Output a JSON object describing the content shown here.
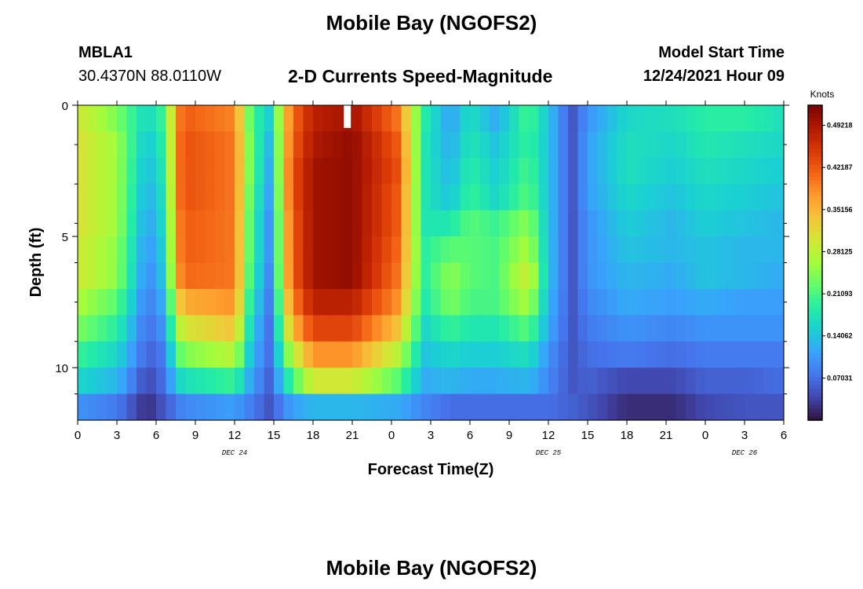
{
  "header": {
    "title": "Mobile Bay (NGOFS2)",
    "station_id": "MBLA1",
    "coordinates": "30.4370N  88.0110W",
    "subtitle": "2-D Currents Speed-Magnitude",
    "model_start_label": "Model Start Time",
    "model_start_value": "12/24/2021 Hour 09"
  },
  "footer": {
    "title": "Mobile Bay (NGOFS2)"
  },
  "colors": {
    "colormap": "turbo",
    "colormap_stops": [
      "#30123b",
      "#4145ab",
      "#4675ed",
      "#39a2fc",
      "#1bcfd4",
      "#24eca6",
      "#61fc6c",
      "#a4fc3b",
      "#d1e834",
      "#f3c63a",
      "#fe9b2d",
      "#f36315",
      "#d93806",
      "#b11901",
      "#7a0402"
    ]
  },
  "chart_data": {
    "type": "heatmap",
    "xlabel": "Forecast Time(Z)",
    "ylabel": "Depth (ft)",
    "x_range_hours_from_dec24_00z": [
      0,
      54
    ],
    "x_tick_labels": [
      "0",
      "3",
      "6",
      "9",
      "12",
      "15",
      "18",
      "21",
      "0",
      "3",
      "6",
      "9",
      "12",
      "15",
      "18",
      "21",
      "0",
      "3",
      "6"
    ],
    "day_labels": [
      {
        "label": "DEC 24",
        "at_hour": 12
      },
      {
        "label": "DEC 25",
        "at_hour": 36
      },
      {
        "label": "DEC 26",
        "at_hour": 51
      }
    ],
    "ylim": [
      0,
      12
    ],
    "y_inverted": true,
    "y_tick_labels": [
      "0",
      "5",
      "10"
    ],
    "y_major_ticks": [
      0,
      5,
      10
    ],
    "y_minor_ticks": [
      1.5,
      3,
      4.5,
      6,
      7.5,
      9,
      11
    ],
    "depth_levels_ft": [
      0.5,
      1.5,
      2.5,
      3.5,
      4.5,
      5.5,
      6.5,
      7.5,
      8.5,
      9.5,
      10.5,
      11.5
    ],
    "time_keyframes_hours": [
      0,
      3,
      5.3,
      6.5,
      8,
      12,
      13.3,
      14.7,
      16.3,
      18,
      21,
      24.5,
      26.5,
      28.5,
      30,
      32,
      34.5,
      36,
      37.8,
      39,
      42,
      45.5,
      48,
      51,
      54
    ],
    "speed_knots_keyframes": [
      [
        0.3,
        0.24,
        0.16,
        0.2,
        0.42,
        0.39,
        0.21,
        0.15,
        0.4,
        0.48,
        0.5,
        0.4,
        0.19,
        0.11,
        0.17,
        0.12,
        0.21,
        0.14,
        0.05,
        0.1,
        0.16,
        0.17,
        0.19,
        0.19,
        0.17
      ],
      [
        0.31,
        0.26,
        0.14,
        0.19,
        0.43,
        0.4,
        0.22,
        0.13,
        0.41,
        0.49,
        0.51,
        0.42,
        0.18,
        0.12,
        0.18,
        0.14,
        0.2,
        0.14,
        0.05,
        0.11,
        0.17,
        0.16,
        0.18,
        0.17,
        0.16
      ],
      [
        0.31,
        0.26,
        0.13,
        0.18,
        0.43,
        0.4,
        0.22,
        0.12,
        0.42,
        0.5,
        0.51,
        0.43,
        0.18,
        0.13,
        0.19,
        0.15,
        0.21,
        0.14,
        0.05,
        0.11,
        0.17,
        0.15,
        0.17,
        0.16,
        0.15
      ],
      [
        0.31,
        0.26,
        0.12,
        0.17,
        0.43,
        0.4,
        0.21,
        0.11,
        0.42,
        0.5,
        0.51,
        0.42,
        0.18,
        0.14,
        0.2,
        0.16,
        0.22,
        0.14,
        0.05,
        0.11,
        0.16,
        0.14,
        0.16,
        0.15,
        0.14
      ],
      [
        0.31,
        0.26,
        0.11,
        0.16,
        0.42,
        0.4,
        0.2,
        0.1,
        0.41,
        0.5,
        0.51,
        0.42,
        0.18,
        0.18,
        0.22,
        0.2,
        0.25,
        0.14,
        0.05,
        0.1,
        0.15,
        0.13,
        0.15,
        0.14,
        0.13
      ],
      [
        0.3,
        0.25,
        0.1,
        0.15,
        0.42,
        0.4,
        0.2,
        0.1,
        0.41,
        0.5,
        0.51,
        0.41,
        0.19,
        0.22,
        0.22,
        0.21,
        0.27,
        0.14,
        0.05,
        0.1,
        0.14,
        0.13,
        0.14,
        0.13,
        0.13
      ],
      [
        0.3,
        0.25,
        0.09,
        0.14,
        0.41,
        0.4,
        0.19,
        0.09,
        0.41,
        0.5,
        0.51,
        0.4,
        0.19,
        0.25,
        0.22,
        0.21,
        0.3,
        0.14,
        0.05,
        0.1,
        0.13,
        0.12,
        0.14,
        0.13,
        0.12
      ],
      [
        0.27,
        0.22,
        0.08,
        0.12,
        0.36,
        0.38,
        0.17,
        0.08,
        0.38,
        0.48,
        0.48,
        0.38,
        0.18,
        0.24,
        0.21,
        0.21,
        0.27,
        0.13,
        0.05,
        0.09,
        0.12,
        0.11,
        0.12,
        0.11,
        0.11
      ],
      [
        0.24,
        0.19,
        0.07,
        0.1,
        0.3,
        0.34,
        0.15,
        0.07,
        0.34,
        0.44,
        0.44,
        0.34,
        0.16,
        0.2,
        0.18,
        0.18,
        0.22,
        0.12,
        0.05,
        0.08,
        0.1,
        0.09,
        0.1,
        0.1,
        0.1
      ],
      [
        0.2,
        0.16,
        0.06,
        0.08,
        0.24,
        0.28,
        0.13,
        0.07,
        0.27,
        0.38,
        0.38,
        0.28,
        0.14,
        0.16,
        0.15,
        0.15,
        0.17,
        0.1,
        0.05,
        0.07,
        0.08,
        0.07,
        0.08,
        0.08,
        0.08
      ],
      [
        0.16,
        0.13,
        0.04,
        0.07,
        0.17,
        0.2,
        0.11,
        0.06,
        0.2,
        0.3,
        0.3,
        0.22,
        0.12,
        0.13,
        0.12,
        0.12,
        0.13,
        0.09,
        0.05,
        0.06,
        0.04,
        0.04,
        0.06,
        0.06,
        0.07
      ],
      [
        0.1,
        0.08,
        0.02,
        0.05,
        0.09,
        0.11,
        0.08,
        0.05,
        0.11,
        0.13,
        0.13,
        0.12,
        0.09,
        0.07,
        0.07,
        0.07,
        0.07,
        0.07,
        0.06,
        0.05,
        0.02,
        0.02,
        0.04,
        0.05,
        0.05
      ]
    ],
    "time_step_hours": 0.75,
    "missing_cell": {
      "time_hours": 20.5,
      "depth_ft": 0.5
    },
    "colorbar": {
      "unit": "Knots",
      "min": 0,
      "max": 0.5257,
      "tick_labels": [
        "0.07031",
        "0.14062",
        "0.21093",
        "0.28125",
        "0.35156",
        "0.42187",
        "0.49218"
      ]
    }
  }
}
